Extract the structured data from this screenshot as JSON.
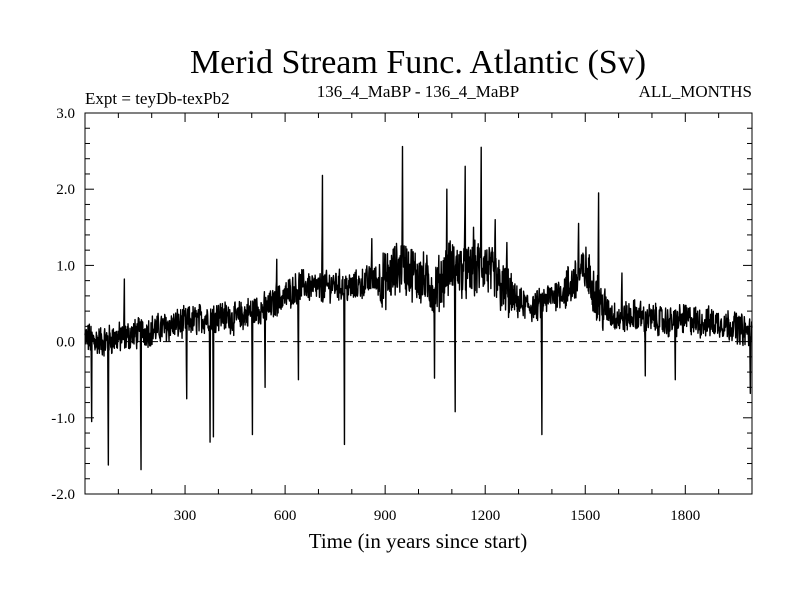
{
  "chart_data": {
    "type": "line",
    "title": "Merid Stream Func. Atlantic (Sv)",
    "subtitle_left": "Expt = teyDb-texPb2",
    "subtitle_center": "136_4_MaBP - 136_4_MaBP",
    "subtitle_right": "ALL_MONTHS",
    "xlabel": "Time (in years since start)",
    "ylabel": "",
    "xlim": [
      0,
      2000
    ],
    "ylim": [
      -2.0,
      3.0
    ],
    "x_ticks": [
      300,
      600,
      900,
      1200,
      1500,
      1800
    ],
    "x_tick_labels": [
      "300",
      "600",
      "900",
      "1200",
      "1500",
      "1800"
    ],
    "y_ticks": [
      -2.0,
      -1.0,
      0.0,
      1.0,
      2.0,
      3.0
    ],
    "y_tick_labels": [
      "-2.0",
      "-1.0",
      "0.0",
      "1.0",
      "2.0",
      "3.0"
    ],
    "reference_line": {
      "y": 0.0,
      "style": "dashed"
    },
    "series": [
      {
        "name": "Merid Stream Func. Atlantic",
        "anchors_x": [
          0,
          50,
          100,
          150,
          200,
          250,
          300,
          350,
          400,
          450,
          500,
          550,
          600,
          650,
          700,
          750,
          800,
          850,
          900,
          950,
          1000,
          1050,
          1100,
          1150,
          1200,
          1250,
          1300,
          1350,
          1400,
          1450,
          1500,
          1550,
          1600,
          1650,
          1700,
          1750,
          1800,
          1850,
          1900,
          1950,
          2000
        ],
        "anchors_y": [
          0.05,
          0.0,
          0.05,
          0.1,
          0.15,
          0.2,
          0.25,
          0.3,
          0.35,
          0.3,
          0.4,
          0.45,
          0.6,
          0.75,
          0.7,
          0.75,
          0.7,
          0.8,
          0.8,
          1.0,
          0.85,
          0.7,
          1.0,
          0.9,
          1.0,
          0.7,
          0.5,
          0.45,
          0.6,
          0.7,
          0.95,
          0.45,
          0.3,
          0.35,
          0.3,
          0.25,
          0.3,
          0.25,
          0.25,
          0.2,
          0.1
        ],
        "spikes": [
          [
            20,
            -1.05
          ],
          [
            70,
            -1.62
          ],
          [
            118,
            0.82
          ],
          [
            168,
            -1.68
          ],
          [
            305,
            -0.75
          ],
          [
            375,
            -1.32
          ],
          [
            385,
            -1.25
          ],
          [
            502,
            -1.22
          ],
          [
            540,
            -0.6
          ],
          [
            575,
            1.08
          ],
          [
            640,
            -0.5
          ],
          [
            712,
            2.18
          ],
          [
            778,
            -1.35
          ],
          [
            860,
            1.35
          ],
          [
            952,
            2.56
          ],
          [
            1048,
            -0.48
          ],
          [
            1085,
            2.0
          ],
          [
            1110,
            -0.92
          ],
          [
            1140,
            2.3
          ],
          [
            1165,
            1.5
          ],
          [
            1188,
            2.55
          ],
          [
            1230,
            1.6
          ],
          [
            1265,
            1.3
          ],
          [
            1370,
            -1.22
          ],
          [
            1480,
            1.55
          ],
          [
            1540,
            1.95
          ],
          [
            1610,
            0.9
          ],
          [
            1680,
            -0.45
          ],
          [
            1770,
            -0.5
          ],
          [
            1995,
            -0.68
          ]
        ]
      }
    ]
  }
}
